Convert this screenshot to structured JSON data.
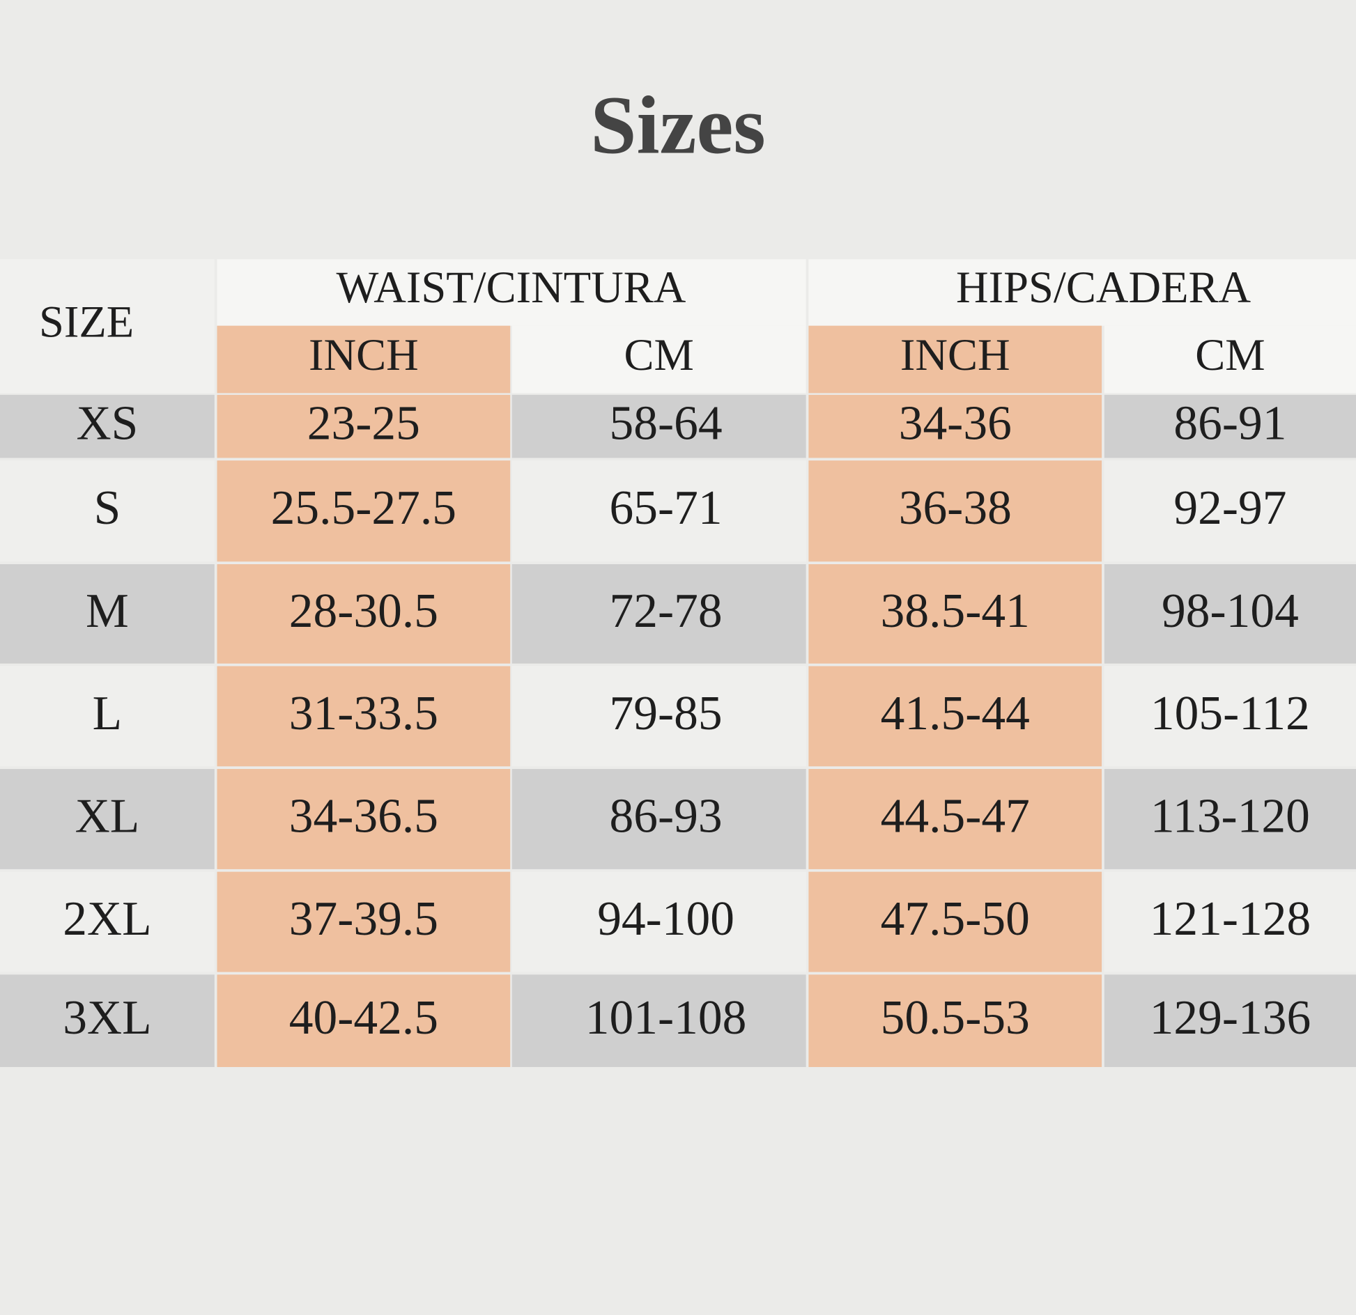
{
  "title": "Sizes",
  "table": {
    "header": {
      "size": "SIZE",
      "groups": [
        "WAIST/CINTURA",
        "HIPS/CADERA"
      ],
      "units": [
        "INCH",
        "CM",
        "INCH",
        "CM"
      ]
    },
    "rows": [
      [
        "XS",
        "23-25",
        "58-64",
        "34-36",
        "86-91"
      ],
      [
        "S",
        "25.5-27.5",
        "65-71",
        "36-38",
        "92-97"
      ],
      [
        "M",
        "28-30.5",
        "72-78",
        "38.5-41",
        "98-104"
      ],
      [
        "L",
        "31-33.5",
        "79-85",
        "41.5-44",
        "105-112"
      ],
      [
        "XL",
        "34-36.5",
        "86-93",
        "44.5-47",
        "113-120"
      ],
      [
        "2XL",
        "37-39.5",
        "94-100",
        "47.5-50",
        "121-128"
      ],
      [
        "3XL",
        "40-42.5",
        "101-108",
        "50.5-53",
        "129-136"
      ]
    ]
  }
}
